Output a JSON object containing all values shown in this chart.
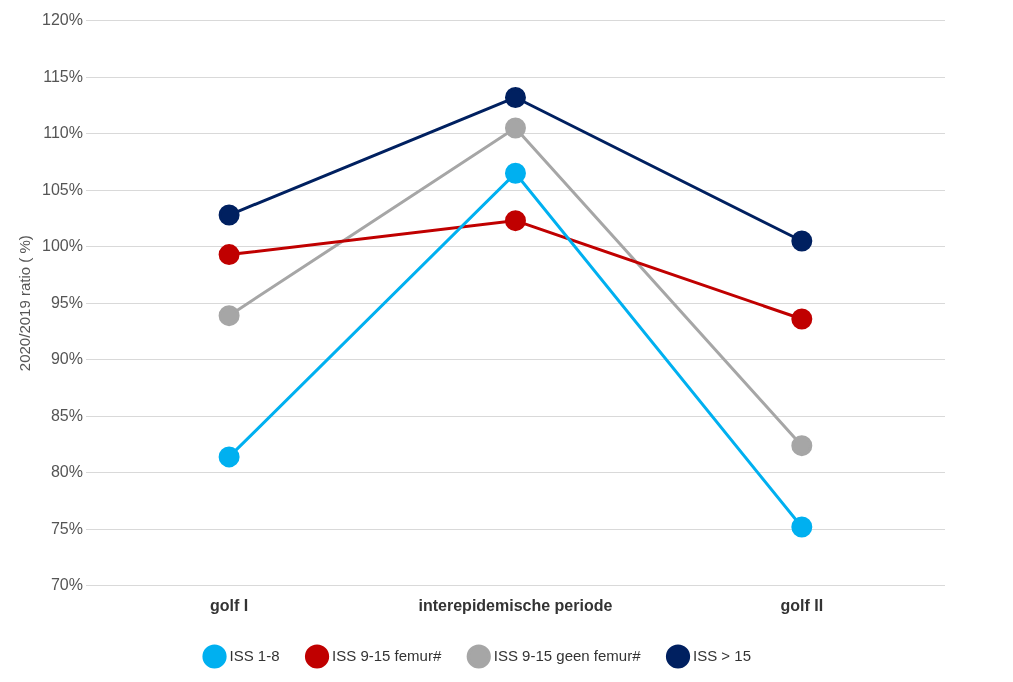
{
  "chart_data": {
    "type": "line",
    "ylabel": "2020/2019 ratio ( %)",
    "categories": [
      "golf I",
      "interepidemische periode",
      "golf II"
    ],
    "series": [
      {
        "name": "ISS 1-8",
        "color": "#00b0f0",
        "values": [
          81.4,
          106.5,
          75.2
        ]
      },
      {
        "name": "ISS 9-15 femur#",
        "color": "#c00000",
        "values": [
          99.3,
          102.3,
          93.6
        ]
      },
      {
        "name": "ISS 9-15 geen femur#",
        "color": "#a6a6a6",
        "values": [
          93.9,
          110.5,
          82.4
        ]
      },
      {
        "name": "ISS > 15",
        "color": "#002060",
        "values": [
          102.8,
          113.2,
          100.5
        ]
      }
    ],
    "ylim": [
      70,
      120
    ],
    "yticks": [
      {
        "value": 70,
        "label": "70%"
      },
      {
        "value": 75,
        "label": "75%"
      },
      {
        "value": 80,
        "label": "80%"
      },
      {
        "value": 85,
        "label": "85%"
      },
      {
        "value": 90,
        "label": "90%"
      },
      {
        "value": 95,
        "label": "95%"
      },
      {
        "value": 100,
        "label": "100%"
      },
      {
        "value": 105,
        "label": "105%"
      },
      {
        "value": 110,
        "label": "110%"
      },
      {
        "value": 115,
        "label": "115%"
      },
      {
        "value": 120,
        "label": "120%"
      }
    ],
    "grid": "y",
    "legend": "bottom",
    "marker": "circle",
    "line_style": "solid"
  }
}
